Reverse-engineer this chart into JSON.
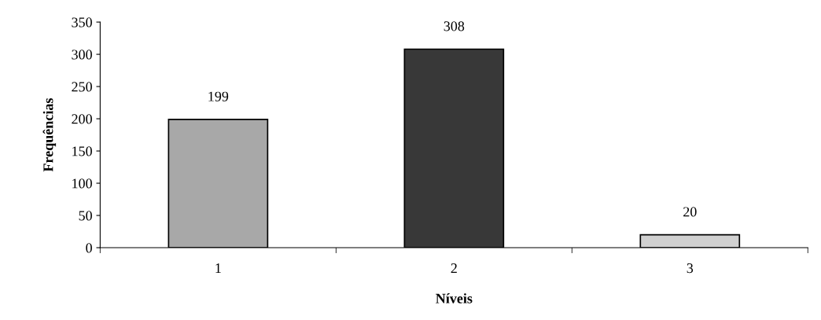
{
  "chart_data": {
    "type": "bar",
    "xlabel": "Níveis",
    "ylabel": "Frequências",
    "categories": [
      "1",
      "2",
      "3"
    ],
    "values": [
      199,
      308,
      20
    ],
    "colors": [
      "#a8a8a8",
      "#383838",
      "#d0d0d0"
    ],
    "ylim": [
      0,
      350
    ],
    "yticks": [
      0,
      50,
      100,
      150,
      200,
      250,
      300,
      350
    ],
    "data_labels": true,
    "grid": false,
    "legend": false
  }
}
